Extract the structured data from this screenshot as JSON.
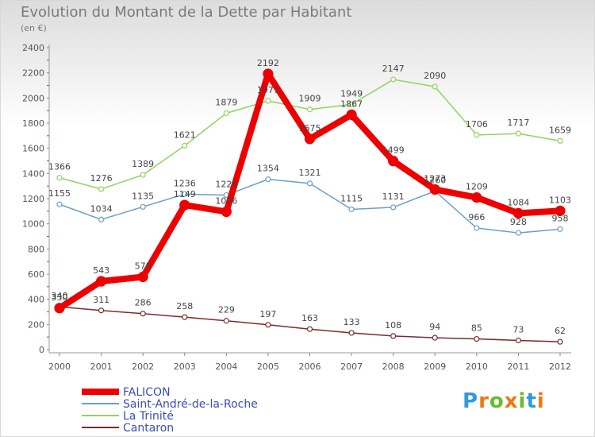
{
  "title": "Evolution du Montant de la Dette par Habitant",
  "subtitle": "(en €)",
  "logo": "Proxiti",
  "chart_data": {
    "type": "line",
    "x": [
      "2000",
      "2001",
      "2002",
      "2003",
      "2004",
      "2005",
      "2006",
      "2007",
      "2008",
      "2009",
      "2010",
      "2011",
      "2012"
    ],
    "ylim": [
      0,
      2400
    ],
    "yticks": [
      0,
      200,
      400,
      600,
      800,
      1000,
      1200,
      1400,
      1600,
      1800,
      2000,
      2200,
      2400
    ],
    "grid": false,
    "legend": "bottom-left",
    "series": [
      {
        "name": "FALICON",
        "color": "#ee0000",
        "width": 8,
        "values": [
          330,
          543,
          578,
          1149,
          1096,
          2192,
          1675,
          1867,
          1499,
          1273,
          1209,
          1084,
          1103
        ],
        "labels": [
          "330",
          "543",
          "578",
          "1149",
          "1096",
          "2192",
          "1675",
          "1867",
          "1499",
          "1273",
          "1209",
          "1084",
          "1103"
        ]
      },
      {
        "name": "Saint-André-de-la-Roche",
        "color": "#6a9fcb",
        "width": 1.5,
        "values": [
          1155,
          1034,
          1135,
          1236,
          1228,
          1354,
          1321,
          1115,
          1131,
          1260,
          966,
          928,
          958
        ],
        "labels": [
          "1155",
          "1034",
          "1135",
          "1236",
          "1228",
          "1354",
          "1321",
          "1115",
          "1131",
          "1260",
          "966",
          "928",
          "958"
        ]
      },
      {
        "name": "La Trinité",
        "color": "#8fd460",
        "width": 1.5,
        "values": [
          1366,
          1276,
          1389,
          1621,
          1879,
          1977,
          1909,
          1949,
          2147,
          2090,
          1706,
          1717,
          1659
        ],
        "labels": [
          "1366",
          "1276",
          "1389",
          "1621",
          "1879",
          "1977",
          "1909",
          "1949",
          "2147",
          "2090",
          "1706",
          "1717",
          "1659"
        ]
      },
      {
        "name": "Cantaron",
        "color": "#7a2b2b",
        "width": 1.5,
        "values": [
          340,
          311,
          286,
          258,
          229,
          197,
          163,
          133,
          108,
          94,
          85,
          73,
          62
        ],
        "labels": [
          "340",
          "311",
          "286",
          "258",
          "229",
          "197",
          "163",
          "133",
          "108",
          "94",
          "85",
          "73",
          "62"
        ]
      }
    ]
  }
}
